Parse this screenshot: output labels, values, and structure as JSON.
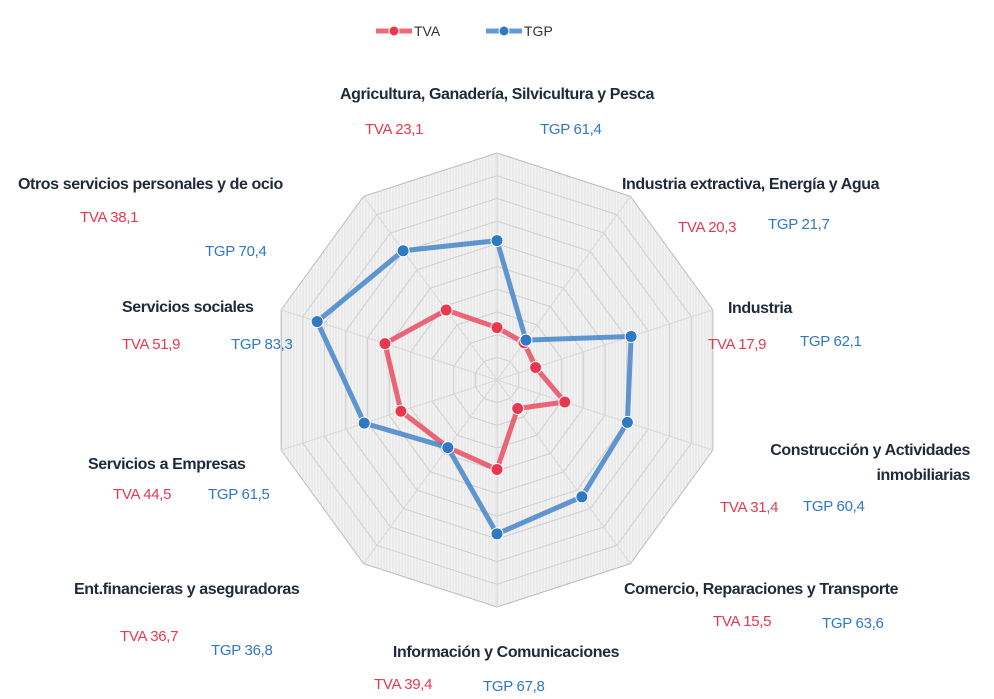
{
  "chart_data": {
    "type": "radar",
    "categories": [
      "Agricultura, Ganadería, Silvicultura y Pesca",
      "Industria extractiva, Energía y Agua",
      "Industria",
      "Construcción y Actividades inmobiliarias",
      "Comercio, Reparaciones y Transporte",
      "Información y Comunicaciones",
      "Ent.financieras y aseguradoras",
      "Servicios a Empresas",
      "Servicios sociales",
      "Otros servicios personales y de ocio"
    ],
    "series": [
      {
        "name": "TVA",
        "color": "#e8384f",
        "values": [
          23.1,
          20.3,
          17.9,
          31.4,
          15.5,
          39.4,
          36.7,
          44.5,
          51.9,
          38.1
        ],
        "value_labels": [
          "TVA 23,1",
          "TVA 20,3",
          "TVA 17,9",
          "TVA 31,4",
          "TVA 15,5",
          "TVA 39,4",
          "TVA 36,7",
          "TVA 44,5",
          "TVA 51,9",
          "TVA 38,1"
        ]
      },
      {
        "name": "TGP",
        "color": "#2f78c4",
        "values": [
          61.4,
          21.7,
          62.1,
          60.4,
          63.6,
          67.8,
          36.8,
          61.5,
          83.3,
          70.4
        ],
        "value_labels": [
          "TGP 61,4",
          "TGP 21,7",
          "TGP 62,1",
          "TGP 60,4",
          "TGP 63,6",
          "TGP 67,8",
          "TGP 36,8",
          "TGP 61,5",
          "TGP 83,3",
          "TGP 70,4"
        ]
      }
    ],
    "ylim": [
      0,
      100
    ],
    "yticks": [
      0,
      10,
      20,
      30,
      40,
      50,
      60,
      70,
      80,
      90,
      100
    ],
    "grid": true,
    "legend": "top"
  }
}
